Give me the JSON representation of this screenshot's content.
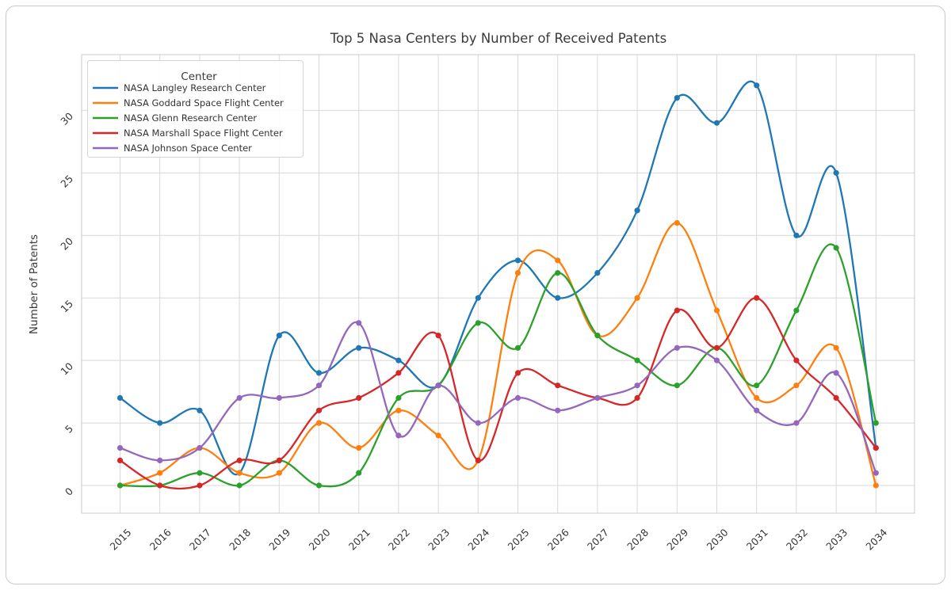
{
  "chart_data": {
    "type": "line",
    "title": "Top 5 Nasa Centers by Number of Received Patents",
    "xlabel": "",
    "ylabel": "Number of Patents",
    "legend_title": "Center",
    "legend_position": "upper left",
    "grid": true,
    "smooth_lines": true,
    "markers": true,
    "x": [
      2015,
      2016,
      2017,
      2018,
      2019,
      2020,
      2021,
      2022,
      2023,
      2024,
      2025,
      2026,
      2027,
      2028,
      2029,
      2030,
      2031,
      2032,
      2033,
      2034
    ],
    "yticks": [
      0,
      5,
      10,
      15,
      20,
      25,
      30
    ],
    "ylim_data": [
      0,
      32
    ],
    "series": [
      {
        "name": "NASA Langley Research Center",
        "color": "#1f77b4",
        "values": [
          7,
          5,
          6,
          1,
          12,
          9,
          11,
          10,
          8,
          15,
          18,
          15,
          17,
          22,
          31,
          29,
          32,
          20,
          25,
          3
        ]
      },
      {
        "name": "NASA Goddard Space Flight Center",
        "color": "#ff7f0e",
        "values": [
          0,
          1,
          3,
          1,
          1,
          5,
          3,
          6,
          4,
          2,
          17,
          18,
          12,
          15,
          21,
          14,
          7,
          8,
          11,
          0
        ]
      },
      {
        "name": "NASA Glenn Research Center",
        "color": "#2ca02c",
        "values": [
          0,
          0,
          1,
          0,
          2,
          0,
          1,
          7,
          8,
          13,
          11,
          17,
          12,
          10,
          8,
          11,
          8,
          14,
          19,
          5
        ]
      },
      {
        "name": "NASA Marshall Space Flight Center",
        "color": "#d62728",
        "values": [
          2,
          0,
          0,
          2,
          2,
          6,
          7,
          9,
          12,
          2,
          9,
          8,
          7,
          7,
          14,
          11,
          15,
          10,
          7,
          3
        ]
      },
      {
        "name": "NASA Johnson Space Center",
        "color": "#9467bd",
        "values": [
          3,
          2,
          3,
          7,
          7,
          8,
          13,
          4,
          8,
          5,
          7,
          6,
          7,
          8,
          11,
          10,
          6,
          5,
          9,
          1
        ]
      }
    ],
    "style": {
      "grid_color": "#d8d8d8",
      "spine_color": "#cbcbcb",
      "background": "#ffffff",
      "tick_label_rotation_deg": 45
    }
  }
}
